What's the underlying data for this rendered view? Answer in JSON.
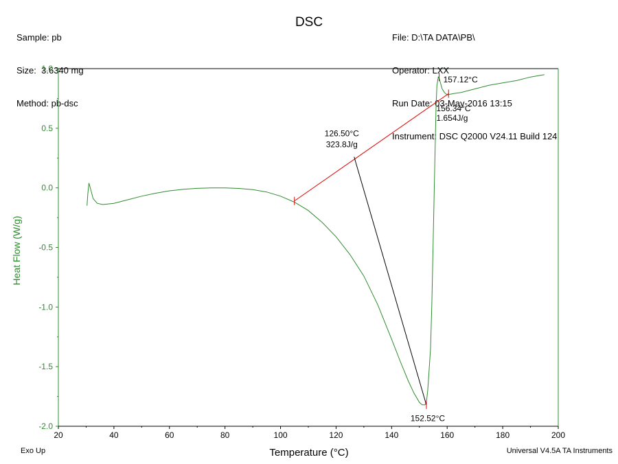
{
  "header": {
    "left": [
      "Sample: pb",
      "Size:  3.6340 mg",
      "Method: pb-dsc"
    ],
    "right": [
      "File: D:\\TA DATA\\PB\\",
      "Operator: LXX",
      "Run Date: 03-May-2016 13:15",
      "Instrument: DSC Q2000 V24.11 Build 124"
    ]
  },
  "footer": {
    "left": "Exo Up",
    "right": "Universal V4.5A TA Instruments"
  },
  "colors": {
    "curve": "#2e8b2e",
    "baseline": "#e00000",
    "tangent": "#000000",
    "axis": "#2e8b2e"
  },
  "chart_data": {
    "type": "line",
    "title": "DSC",
    "xlabel": "Temperature (°C)",
    "ylabel": "Heat Flow (W/g)",
    "xlim": [
      20,
      200
    ],
    "ylim": [
      -2.0,
      1.0
    ],
    "xticks": [
      20,
      40,
      60,
      80,
      100,
      120,
      140,
      160,
      180,
      200
    ],
    "yticks": [
      -2.0,
      -1.5,
      -1.0,
      -0.5,
      0.0,
      0.5,
      1.0
    ],
    "yticks_labels": [
      "-2.0",
      "-1.5",
      "-1.0",
      "-0.5",
      "0.0",
      "0.5",
      "1.0"
    ],
    "grid": false,
    "series": [
      {
        "x": [
          30.3,
          30.6,
          31.0,
          31.5,
          32.5,
          34,
          36,
          40,
          45,
          50,
          55,
          60,
          65,
          70,
          75,
          80,
          85,
          90,
          95,
          100,
          105,
          110,
          115,
          120,
          125,
          130,
          135,
          140,
          143,
          146,
          148,
          150,
          151,
          152,
          152.5,
          153,
          154,
          154.5,
          155,
          155.5,
          156,
          156.3,
          156.8,
          157.1,
          157.6,
          158.2,
          159,
          160,
          162,
          165,
          170,
          175,
          180,
          185,
          190,
          195
        ],
        "y": [
          -0.15,
          -0.05,
          0.04,
          0.0,
          -0.09,
          -0.13,
          -0.14,
          -0.13,
          -0.1,
          -0.07,
          -0.045,
          -0.025,
          -0.012,
          -0.004,
          0.0,
          0.0,
          -0.005,
          -0.015,
          -0.035,
          -0.07,
          -0.12,
          -0.19,
          -0.29,
          -0.41,
          -0.56,
          -0.74,
          -0.98,
          -1.27,
          -1.45,
          -1.62,
          -1.72,
          -1.8,
          -1.82,
          -1.82,
          -1.8,
          -1.7,
          -1.35,
          -0.95,
          -0.4,
          0.15,
          0.68,
          0.86,
          0.93,
          0.92,
          0.88,
          0.83,
          0.8,
          0.78,
          0.79,
          0.8,
          0.83,
          0.86,
          0.88,
          0.9,
          0.93,
          0.95
        ]
      }
    ],
    "baseline": {
      "from": [
        105,
        -0.11
      ],
      "to": [
        160.5,
        0.79
      ]
    },
    "tangent": {
      "from": [
        126.5,
        0.26
      ],
      "to": [
        152.5,
        -1.82
      ]
    },
    "annotations": [
      {
        "text": "157.12°C",
        "x": 157.12,
        "y": 0.93
      },
      {
        "text": "156.34°C",
        "x": 156.34,
        "y": 0.78
      },
      {
        "text": "1.654J/g",
        "x": 156.34,
        "y": 0.78
      },
      {
        "text": "126.50°C",
        "x": 126.5,
        "y": 0.26
      },
      {
        "text": "323.8J/g",
        "x": 126.5,
        "y": 0.26
      },
      {
        "text": "152.52°C",
        "x": 152.52,
        "y": -1.82
      }
    ]
  }
}
